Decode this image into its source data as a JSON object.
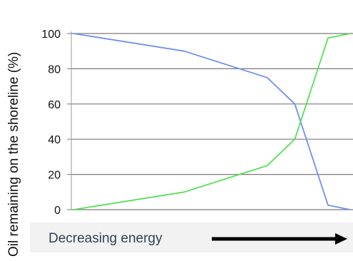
{
  "chart_data": {
    "type": "line",
    "title": "",
    "xlabel": "",
    "ylabel": "Oil remaining on the shoreline (%)",
    "ylim": [
      0,
      100
    ],
    "yticks": [
      0,
      20,
      40,
      60,
      80,
      100
    ],
    "xlim": [
      0,
      10
    ],
    "grid": "horizontal",
    "series": [
      {
        "color": "#6f8ff0",
        "x": [
          0,
          4,
          7,
          8,
          9.2,
          10
        ],
        "y": [
          100,
          90,
          75,
          60,
          2.5,
          0
        ]
      },
      {
        "color": "#55e055",
        "x": [
          0,
          4,
          7,
          8,
          9.2,
          10
        ],
        "y": [
          0,
          10,
          25,
          40,
          97.5,
          100
        ]
      }
    ],
    "annotation": {
      "text": "Decreasing energy",
      "arrow": "right"
    }
  }
}
